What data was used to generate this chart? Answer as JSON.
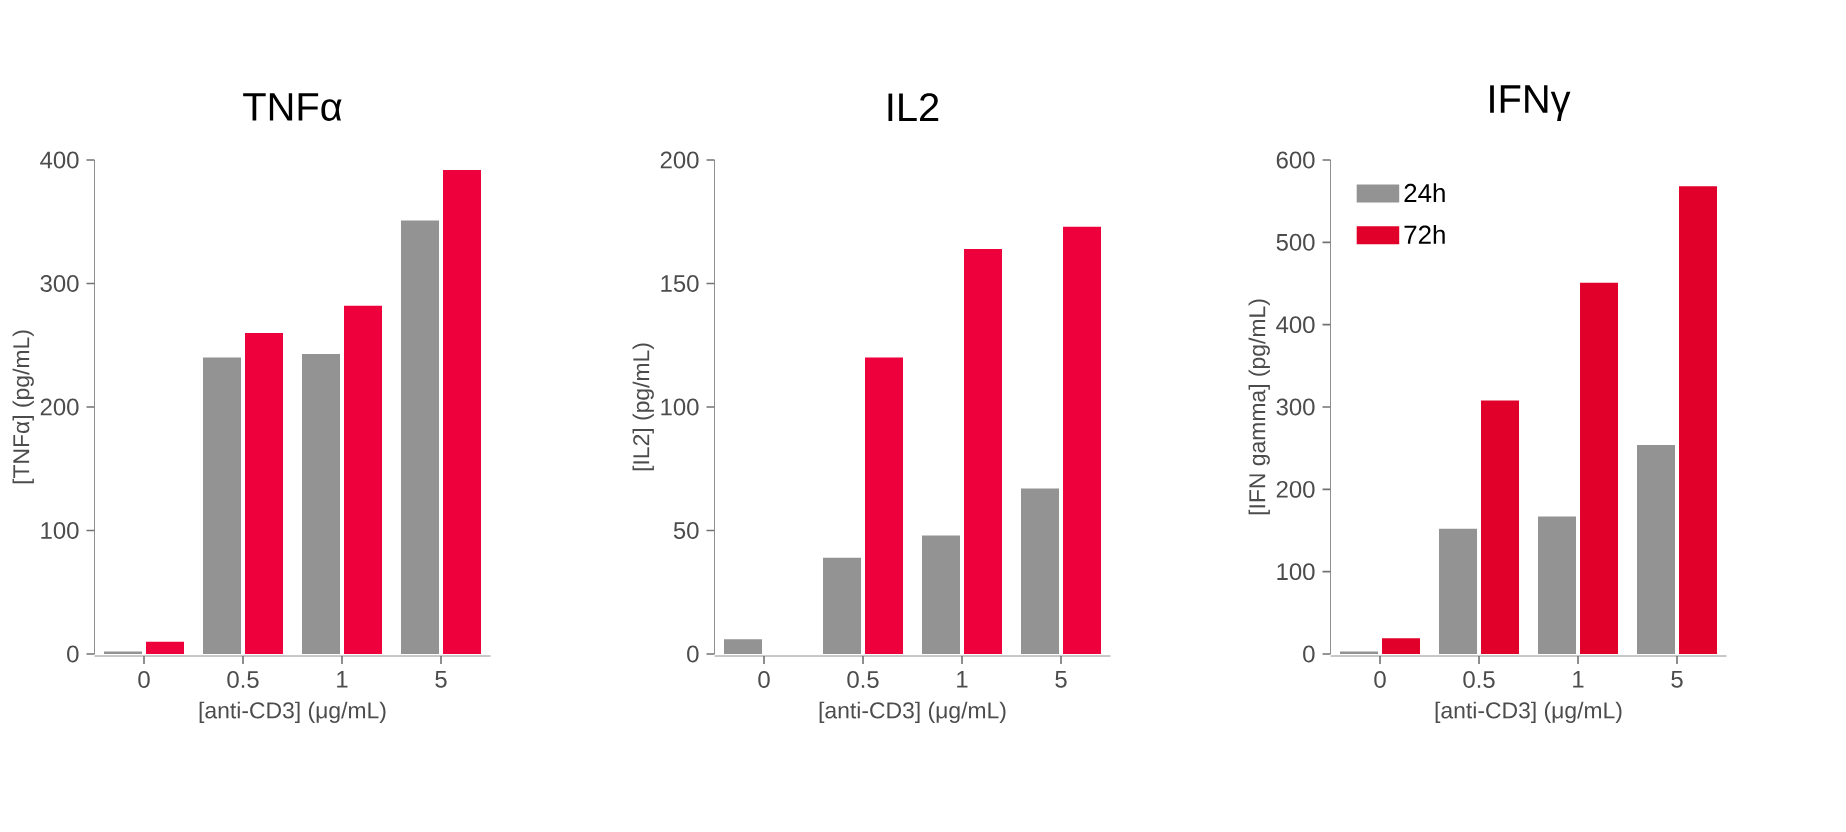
{
  "chart_data": [
    {
      "type": "bar",
      "title": "TNFα",
      "xlabel": "[anti-CD3] (μg/mL)",
      "ylabel": "[TNFα] (pg/mL)",
      "categories": [
        "0",
        "0.5",
        "1",
        "5"
      ],
      "series": [
        {
          "color": "#939393",
          "values": [
            2,
            240,
            243,
            351
          ]
        },
        {
          "color": "#ee003c",
          "values": [
            10,
            260,
            282,
            392
          ]
        }
      ],
      "ylim": [
        0,
        400
      ],
      "yticks": [
        0,
        100,
        200,
        300,
        400
      ]
    },
    {
      "type": "bar",
      "title": "IL2",
      "xlabel": "[anti-CD3] (μg/mL)",
      "ylabel": "[IL2] (pg/mL)",
      "categories": [
        "0",
        "0.5",
        "1",
        "5"
      ],
      "series": [
        {
          "color": "#939393",
          "values": [
            6,
            39,
            48,
            67
          ]
        },
        {
          "color": "#ee003c",
          "values": [
            0,
            120,
            164,
            173
          ]
        }
      ],
      "ylim": [
        0,
        200
      ],
      "yticks": [
        0,
        50,
        100,
        150,
        200
      ]
    },
    {
      "type": "bar",
      "title": "IFNγ",
      "xlabel": "[anti-CD3] (μg/mL)",
      "ylabel": "[IFN gamma] (pg/mL)",
      "categories": [
        "0",
        "0.5",
        "1",
        "5"
      ],
      "series": [
        {
          "name": "24h",
          "color": "#939393",
          "values": [
            3,
            152,
            167,
            254
          ]
        },
        {
          "name": "72h",
          "color": "#e0002a",
          "values": [
            19,
            308,
            451,
            568
          ]
        }
      ],
      "ylim": [
        0,
        600
      ],
      "yticks": [
        0,
        100,
        200,
        300,
        400,
        500,
        600
      ],
      "legend": "top left"
    }
  ]
}
